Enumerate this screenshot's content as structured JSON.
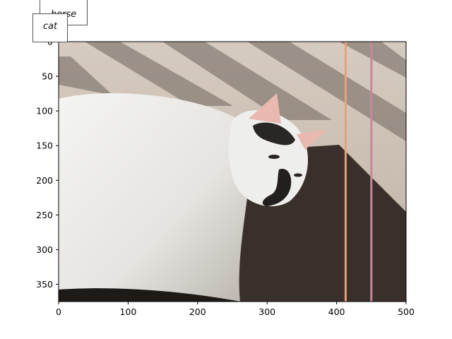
{
  "labels": [
    "horse",
    "cat"
  ],
  "axes": {
    "x_ticks": [
      0,
      100,
      200,
      300,
      400,
      500
    ],
    "y_ticks": [
      0,
      50,
      100,
      150,
      200,
      250,
      300,
      350
    ],
    "xlim": [
      0,
      500
    ],
    "ylim": [
      0,
      375
    ]
  },
  "markers": [
    {
      "x": 413,
      "color": "#e8a07a"
    },
    {
      "x": 450,
      "color": "#c9869c"
    }
  ],
  "colors": {
    "carpet": "#cfc3b7",
    "shadow": "#3a302b",
    "fur": "#ededeb",
    "patch": "#2b2626"
  }
}
